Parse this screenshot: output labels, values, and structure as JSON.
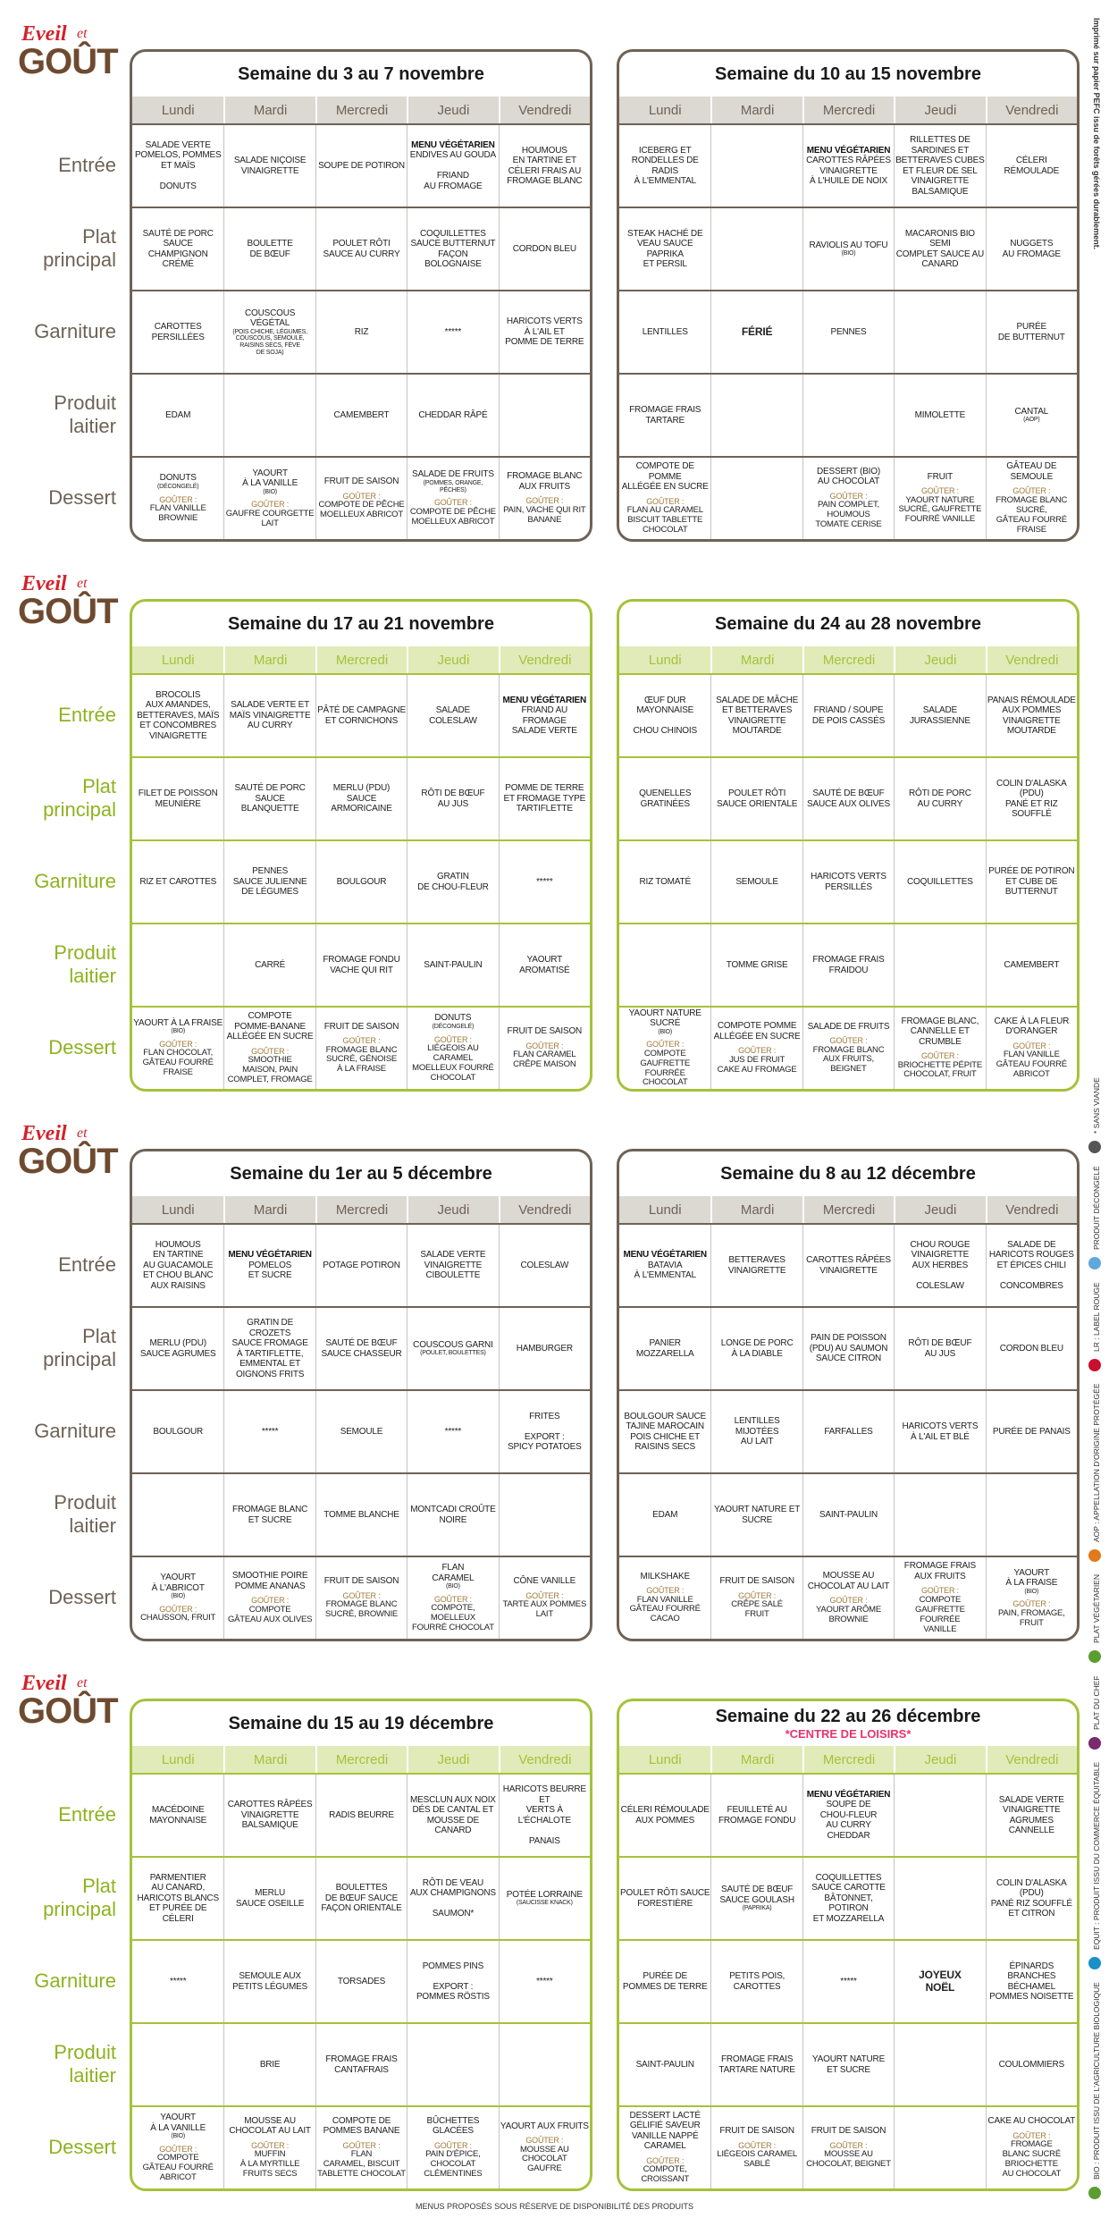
{
  "logo": {
    "word1": "Eveil",
    "word2": "et",
    "word3": "GOÛT"
  },
  "days": [
    "Lundi",
    "Mardi",
    "Mercredi",
    "Jeudi",
    "Vendredi"
  ],
  "row_labels": [
    "Entrée",
    "Plat principal",
    "Garniture",
    "Produit laitier",
    "Dessert"
  ],
  "vegetarian_label": "MENU VÉGÉTARIEN",
  "snack_label": "GOÛTER :",
  "print_note": "Imprimé sur papier PEFC issu de forêts gérées durablement.",
  "legend": [
    "BIO : PRODUIT ISSU DE L'AGRICULTURE BIOLOGIQUE",
    "EQUIT : PRODUIT ISSU DU COMMERCE ÉQUITABLE",
    "PLAT DU CHEF",
    "PLAT VÉGÉTARIEN",
    "AOP : APPELLATION D'ORIGINE PROTÉGÉE",
    "LR : LABEL ROUGE",
    "PRODUIT DÉCONGELÉ",
    "* SANS VIANDE"
  ],
  "legend_colors": [
    "#5a9e2f",
    "#1a8fc9",
    "#7a2a6e",
    "#5a9e2f",
    "#e07a1a",
    "#c8102e",
    "#5fa8dd",
    "#555555"
  ],
  "footer": "MENUS PROPOSÉS SOUS RÉSERVE DE DISPONIBILITÉ DES PRODUITS",
  "blocks": [
    {
      "accent": "#6e6256",
      "header_bg": "#dcd8d2",
      "label_color": "#6e6256",
      "weeks": [
        {
          "title": "Semaine du 3 au 7 novembre",
          "rows": [
            [
              "SALADE VERTE\nPOMELOS, POMMES\nET MAÏS\n\nDONUTS",
              "SALADE NIÇOISE\nVINAIGRETTE",
              "SOUPE DE POTIRON",
              {
                "vegetarian": true,
                "text": "ENDIVES AU GOUDA\n\nFRIAND\nAU FROMAGE"
              },
              "HOUMOUS\nEN TARTINE ET\nCÉLERI FRAIS AU\nFROMAGE BLANC"
            ],
            [
              "SAUTÉ DE PORC\nSAUCE CHAMPIGNON\nCRÉMÉ",
              "BOULETTE\nDE BŒUF",
              "POULET RÔTI\nSAUCE AU CURRY",
              "COQUILLETTES\nSAUCE BUTTERNUT\nFAÇON BOLOGNAISE",
              "CORDON BLEU"
            ],
            [
              "CAROTTES\nPERSILLÉES",
              {
                "text": "COUSCOUS VÉGÉTAL",
                "note": "(POIS CHICHE, LÉGUMES,\nCOUSCOUS, SEMOULE,\nRAISINS SECS, FÈVE\nDE SOJA)"
              },
              "RIZ",
              "*****",
              "HARICOTS VERTS\nÀ L'AIL ET\nPOMME DE TERRE"
            ],
            [
              "EDAM",
              null,
              "CAMEMBERT",
              "CHEDDAR RÂPÉ",
              null
            ],
            [
              {
                "text": "DONUTS",
                "note": "(DÉCONGELÉ)",
                "snack": "FLAN VANILLE\nBROWNIE"
              },
              {
                "text": "YAOURT\nÀ LA VANILLE",
                "note": "(BIO)",
                "snack": "GAUFRE COURGETTE\nLAIT"
              },
              {
                "text": "FRUIT DE SAISON",
                "snack": "COMPOTE DE PÊCHE\nMOELLEUX ABRICOT"
              },
              {
                "text": "SALADE DE FRUITS",
                "note": "(POMMES, ORANGE,\nPÊCHES)",
                "snack": "COMPOTE DE PÊCHE\nMOELLEUX ABRICOT"
              },
              {
                "text": "FROMAGE BLANC\nAUX FRUITS",
                "snack": "PAIN, VACHE QUI RIT\nBANANE"
              }
            ]
          ]
        },
        {
          "title": "Semaine du 10 au 15 novembre",
          "rows": [
            [
              "ICEBERG ET\nRONDELLES DE RADIS\nÀ L'EMMENTAL",
              null,
              {
                "vegetarian": true,
                "text": "CAROTTES RÂPÉES\nVINAIGRETTE\nÀ L'HUILE DE NOIX"
              },
              "RILLETTES DE\nSARDINES ET\nBETTERAVES CUBES\nET FLEUR DE SEL\nVINAIGRETTE\nBALSAMIQUE",
              "CÉLERI\nRÉMOULADE"
            ],
            [
              "STEAK HACHÉ DE\nVEAU SAUCE PAPRIKA\nET PERSIL",
              null,
              {
                "text": "RAVIOLIS AU TOFU",
                "note": "(BIO)"
              },
              "MACARONIS BIO SEMI\nCOMPLET SAUCE AU\nCANARD",
              "NUGGETS\nAU FROMAGE"
            ],
            [
              "LENTILLES",
              {
                "text": "FÉRIÉ",
                "bold": true
              },
              "PENNES",
              null,
              "PURÉE\nDE BUTTERNUT"
            ],
            [
              "FROMAGE FRAIS\nTARTARE",
              null,
              null,
              "MIMOLETTE",
              {
                "text": "CANTAL",
                "note": "(AOP)"
              }
            ],
            [
              {
                "text": "COMPOTE DE POMME\nALLÉGÉE EN SUCRE",
                "snack": "FLAN AU CARAMEL\nBISCUIT TABLETTE\nCHOCOLAT"
              },
              null,
              {
                "text": "DESSERT (BIO)\nAU CHOCOLAT",
                "snack": "PAIN COMPLET,\nHOUMOUS\nTOMATE CERISE"
              },
              {
                "text": "FRUIT",
                "snack": "YAOURT NATURE\nSUCRÉ, GAUFRETTE\nFOURRÉ VANILLE"
              },
              {
                "text": "GÂTEAU DE SEMOULE",
                "snack": "FROMAGE BLANC\nSUCRÉ,\nGÂTEAU FOURRÉ\nFRAISE"
              }
            ]
          ]
        }
      ]
    },
    {
      "accent": "#a5c23a",
      "header_bg": "#e0ebb9",
      "label_color": "#8db31f",
      "weeks": [
        {
          "title": "Semaine du 17 au 21 novembre",
          "rows": [
            [
              "BROCOLIS\nAUX AMANDES,\nBETTERAVES, MAÏS\nET CONCOMBRES\nVINAIGRETTE",
              "SALADE VERTE ET\nMAÏS VINAIGRETTE\nAU CURRY",
              "PÂTÉ DE CAMPAGNE\nET CORNICHONS",
              "SALADE\nCOLESLAW",
              {
                "vegetarian": true,
                "text": "FRIAND AU FROMAGE\nSALADE VERTE"
              }
            ],
            [
              "FILET DE POISSON\nMEUNIÈRE",
              "SAUTÉ DE PORC\nSAUCE BLANQUETTE",
              "MERLU (PDU)\nSAUCE\nARMORICAINE",
              "RÔTI DE BŒUF\nAU JUS",
              "POMME DE TERRE\nET FROMAGE TYPE\nTARTIFLETTE"
            ],
            [
              "RIZ ET CAROTTES",
              "PENNES\nSAUCE JULIENNE\nDE LÉGUMES",
              "BOULGOUR",
              "GRATIN\nDE CHOU-FLEUR",
              "*****"
            ],
            [
              null,
              "CARRÉ",
              "FROMAGE FONDU\nVACHE QUI RIT",
              "SAINT-PAULIN",
              "YAOURT\nAROMATISÉ"
            ],
            [
              {
                "text": "YAOURT À LA FRAISE",
                "note": "(BIO)",
                "snack": "FLAN CHOCOLAT,\nGÂTEAU FOURRÉ\nFRAISE"
              },
              {
                "text": "COMPOTE\nPOMME-BANANE\nALLÉGÉE EN SUCRE",
                "snack": "SMOOTHIE\nMAISON, PAIN\nCOMPLET, FROMAGE"
              },
              {
                "text": "FRUIT DE SAISON",
                "snack": "FROMAGE BLANC\nSUCRÉ, GÉNOISE\nÀ LA FRAISE"
              },
              {
                "text": "DONUTS",
                "note": "(DÉCONGELÉ)",
                "snack": "LIÉGEOIS AU CARAMEL\nMOELLEUX FOURRÉ\nCHOCOLAT"
              },
              {
                "text": "FRUIT DE SAISON",
                "snack": "FLAN CARAMEL\nCRÊPE MAISON"
              }
            ]
          ]
        },
        {
          "title": "Semaine du 24 au 28 novembre",
          "rows": [
            [
              "ŒUF DUR\nMAYONNAISE\n\nCHOU CHINOIS",
              "SALADE DE MÂCHE\nET BETTERAVES\nVINAIGRETTE\nMOUTARDE",
              "FRIAND / SOUPE\nDE POIS CASSÉS",
              "SALADE\nJURASSIENNE",
              "PANAIS RÉMOULADE\nAUX POMMES\nVINAIGRETTE\nMOUTARDE"
            ],
            [
              "QUENELLES\nGRATINÉES",
              "POULET RÔTI\nSAUCE ORIENTALE",
              "SAUTÉ DE BŒUF\nSAUCE AUX OLIVES",
              "RÔTI DE PORC\nAU CURRY",
              "COLIN D'ALASKA (PDU)\nPANÉ ET RIZ SOUFFLÉ"
            ],
            [
              "RIZ TOMATÉ",
              "SEMOULE",
              "HARICOTS VERTS\nPERSILLÉS",
              "COQUILLETTES",
              "PURÉE DE POTIRON\nET CUBE DE\nBUTTERNUT"
            ],
            [
              null,
              "TOMME GRISE",
              "FROMAGE FRAIS\nFRAIDOU",
              null,
              "CAMEMBERT"
            ],
            [
              {
                "text": "YAOURT NATURE\nSUCRÉ",
                "note": "(BIO)",
                "snack": "COMPOTE\nGAUFRETTE FOURRÉE\nCHOCOLAT"
              },
              {
                "text": "COMPOTE POMME\nALLÉGÉE EN SUCRE",
                "snack": "JUS DE FRUIT\nCAKE AU FROMAGE"
              },
              {
                "text": "SALADE DE FRUITS",
                "snack": "FROMAGE BLANC\nAUX FRUITS,\nBEIGNET"
              },
              {
                "text": "FROMAGE BLANC,\nCANNELLE ET\nCRUMBLE",
                "snack": "BRIOCHETTE PÉPITE\nCHOCOLAT, FRUIT"
              },
              {
                "text": "CAKE À LA FLEUR\nD'ORANGER",
                "snack": "FLAN VANILLE\nGÂTEAU FOURRÉ\nABRICOT"
              }
            ]
          ]
        }
      ]
    },
    {
      "accent": "#6e6256",
      "header_bg": "#dcd8d2",
      "label_color": "#6e6256",
      "weeks": [
        {
          "title": "Semaine du 1er au 5 décembre",
          "rows": [
            [
              "HOUMOUS\nEN TARTINE\nAU GUACAMOLE\nET CHOU BLANC\nAUX RAISINS",
              {
                "vegetarian": true,
                "text": "POMELOS\nET SUCRE"
              },
              "POTAGE POTIRON",
              "SALADE VERTE\nVINAIGRETTE\nCIBOULETTE",
              "COLESLAW"
            ],
            [
              "MERLU (PDU)\nSAUCE AGRUMES",
              "GRATIN DE CROZETS\nSAUCE FROMAGE\nÀ TARTIFLETTE,\nEMMENTAL ET\nOIGNONS FRITS",
              "SAUTÉ DE BŒUF\nSAUCE CHASSEUR",
              {
                "text": "COUSCOUS GARNI",
                "note": "(POULET, BOULETTES)"
              },
              "HAMBURGER"
            ],
            [
              "BOULGOUR",
              "*****",
              "SEMOULE",
              "*****",
              "FRITES\n\nEXPORT :\nSPICY POTATOES"
            ],
            [
              null,
              "FROMAGE BLANC\nET SUCRE",
              "TOMME BLANCHE",
              "MONTCADI CROÛTE\nNOIRE",
              null
            ],
            [
              {
                "text": "YAOURT\nÀ L'ABRICOT",
                "note": "(BIO)",
                "snack": "CHAUSSON, FRUIT"
              },
              {
                "text": "SMOOTHIE POIRE\nPOMME ANANAS",
                "snack": "COMPOTE\nGÂTEAU AUX OLIVES"
              },
              {
                "text": "FRUIT DE SAISON",
                "snack": "FROMAGE BLANC\nSUCRÉ, BROWNIE"
              },
              {
                "text": "FLAN\nCARAMEL",
                "note": "(BIO)",
                "snack": "COMPOTE, MOELLEUX\nFOURRÉ CHOCOLAT"
              },
              {
                "text": "CÔNE VANILLE",
                "snack": "TARTE AUX POMMES\nLAIT"
              }
            ]
          ]
        },
        {
          "title": "Semaine du 8 au 12 décembre",
          "rows": [
            [
              {
                "vegetarian": true,
                "text": "BATAVIA\nÀ L'EMMENTAL"
              },
              "BETTERAVES\nVINAIGRETTE",
              "CAROTTES RÂPÉES\nVINAIGRETTE",
              "CHOU ROUGE\nVINAIGRETTE\nAUX HERBES\n\nCOLESLAW",
              "SALADE DE\nHARICOTS ROUGES\nET ÉPICES CHILI\n\nCONCOMBRES"
            ],
            [
              "PANIER\nMOZZARELLA",
              "LONGE DE PORC\nÀ LA DIABLE",
              "PAIN DE POISSON\n(PDU) AU SAUMON\nSAUCE CITRON",
              "RÔTI DE BŒUF\nAU JUS",
              "CORDON BLEU"
            ],
            [
              "BOULGOUR SAUCE\nTAJINE MAROCAIN\nPOIS CHICHE ET\nRAISINS SECS",
              "LENTILLES MIJOTÉES\nAU LAIT",
              "FARFALLES",
              "HARICOTS VERTS\nÀ L'AIL ET BLÉ",
              "PURÉE DE PANAIS"
            ],
            [
              "EDAM",
              "YAOURT NATURE ET\nSUCRE",
              "SAINT-PAULIN",
              null,
              null
            ],
            [
              {
                "text": "MILKSHAKE",
                "snack": "FLAN VANILLE\nGÂTEAU FOURRÉ\nCACAO"
              },
              {
                "text": "FRUIT DE SAISON",
                "snack": "CRÊPE SALÉ\nFRUIT"
              },
              {
                "text": "MOUSSE AU\nCHOCOLAT AU LAIT",
                "snack": "YAOURT ARÔME\nBROWNIE"
              },
              {
                "text": "FROMAGE FRAIS\nAUX FRUITS",
                "snack": "COMPOTE\nGAUFRETTE FOURRÉE\nVANILLE"
              },
              {
                "text": "YAOURT\nÀ LA FRAISE",
                "note": "(BIO)",
                "snack": "PAIN, FROMAGE,\nFRUIT"
              }
            ]
          ]
        }
      ]
    },
    {
      "accent": "#a5c23a",
      "header_bg": "#e0ebb9",
      "label_color": "#8db31f",
      "weeks": [
        {
          "title": "Semaine du 15 au 19 décembre",
          "rows": [
            [
              "MACÉDOINE\nMAYONNAISE",
              "CAROTTES RÂPÉES\nVINAIGRETTE\nBALSAMIQUE",
              "RADIS BEURRE",
              "MESCLUN AUX NOIX\nDÉS DE CANTAL ET\nMOUSSE DE CANARD",
              "HARICOTS BEURRE ET\nVERTS À L'ÉCHALOTE\n\nPANAIS"
            ],
            [
              "PARMENTIER\nAU CANARD,\nHARICOTS BLANCS\nET PURÉE DE CÉLERI",
              "MERLU\nSAUCE OSEILLE",
              "BOULETTES\nDE BŒUF SAUCE\nFAÇON ORIENTALE",
              "RÔTI DE VEAU\nAUX CHAMPIGNONS\n\nSAUMON*",
              {
                "text": "POTÉE LORRAINE",
                "note": "(SAUCISSE KNACK)"
              }
            ],
            [
              "*****",
              "SEMOULE AUX\nPETITS LÉGUMES",
              "TORSADES",
              "POMMES PINS\n\nEXPORT :\nPOMMES RÖSTIS",
              "*****"
            ],
            [
              null,
              "BRIE",
              "FROMAGE FRAIS\nCANTAFRAIS",
              null,
              null
            ],
            [
              {
                "text": "YAOURT\nÀ LA VANILLE",
                "note": "(BIO)",
                "snack": "COMPOTE\nGÂTEAU FOURRÉ\nABRICOT"
              },
              {
                "text": "MOUSSE AU\nCHOCOLAT AU LAIT",
                "snack": "MUFFIN\nÀ LA MYRTILLE\nFRUITS SECS"
              },
              {
                "text": "COMPOTE DE\nPOMMES BANANE",
                "snack": "FLAN\nCARAMEL, BISCUIT\nTABLETTE CHOCOLAT"
              },
              {
                "text": "BÛCHETTES GLACÉES",
                "snack": "PAIN D'ÉPICE,\nCHOCOLAT\nCLÉMENTINES"
              },
              {
                "text": "YAOURT AUX FRUITS",
                "snack": "MOUSSE AU CHOCOLAT\nGAUFRE"
              }
            ]
          ]
        },
        {
          "title": "Semaine du 22 au 26 décembre",
          "subtitle": "*CENTRE DE LOISIRS*",
          "rows": [
            [
              "CÉLERI RÉMOULADE\nAUX POMMES",
              "FEUILLETÉ AU\nFROMAGE FONDU",
              {
                "vegetarian": true,
                "text": "SOUPE DE\nCHOU-FLEUR\nAU CURRY CHEDDAR"
              },
              null,
              "SALADE VERTE\nVINAIGRETTE\nAGRUMES CANNELLE"
            ],
            [
              "POULET RÔTI SAUCE\nFORESTIÈRE",
              {
                "text": "SAUTÉ DE BŒUF\nSAUCE GOULASH",
                "note": "(PAPRIKA)"
              },
              "COQUILLETTES\nSAUCE CAROTTE\nBÂTONNET, POTIRON\nET MOZZARELLA",
              null,
              "COLIN D'ALASKA (PDU)\nPANÉ RIZ SOUFFLÉ\nET CITRON"
            ],
            [
              "PURÉE DE\nPOMMES DE TERRE",
              "PETITS POIS,\nCAROTTES",
              "*****",
              {
                "text": "JOYEUX\nNOËL",
                "bold": true
              },
              "ÉPINARDS BRANCHES\nBÉCHAMEL\nPOMMES NOISETTE"
            ],
            [
              "SAINT-PAULIN",
              "FROMAGE FRAIS\nTARTARE NATURE",
              "YAOURT NATURE\nET SUCRE",
              null,
              "COULOMMIERS"
            ],
            [
              {
                "text": "DESSERT LACTÉ\nGÉLIFIÉ SAVEUR\nVANILLE NAPPÉ\nCARAMEL",
                "snack": "COMPOTE,\nCROISSANT"
              },
              {
                "text": "FRUIT DE SAISON",
                "snack": "LIÉGEOIS CARAMEL\nSABLÉ"
              },
              {
                "text": "FRUIT DE SAISON",
                "snack": "MOUSSE AU\nCHOCOLAT, BEIGNET"
              },
              null,
              {
                "text": "CAKE AU CHOCOLAT",
                "snack": "FROMAGE\nBLANC SUCRÉ\nBRIOCHETTE\nAU CHOCOLAT"
              }
            ]
          ]
        }
      ]
    }
  ]
}
